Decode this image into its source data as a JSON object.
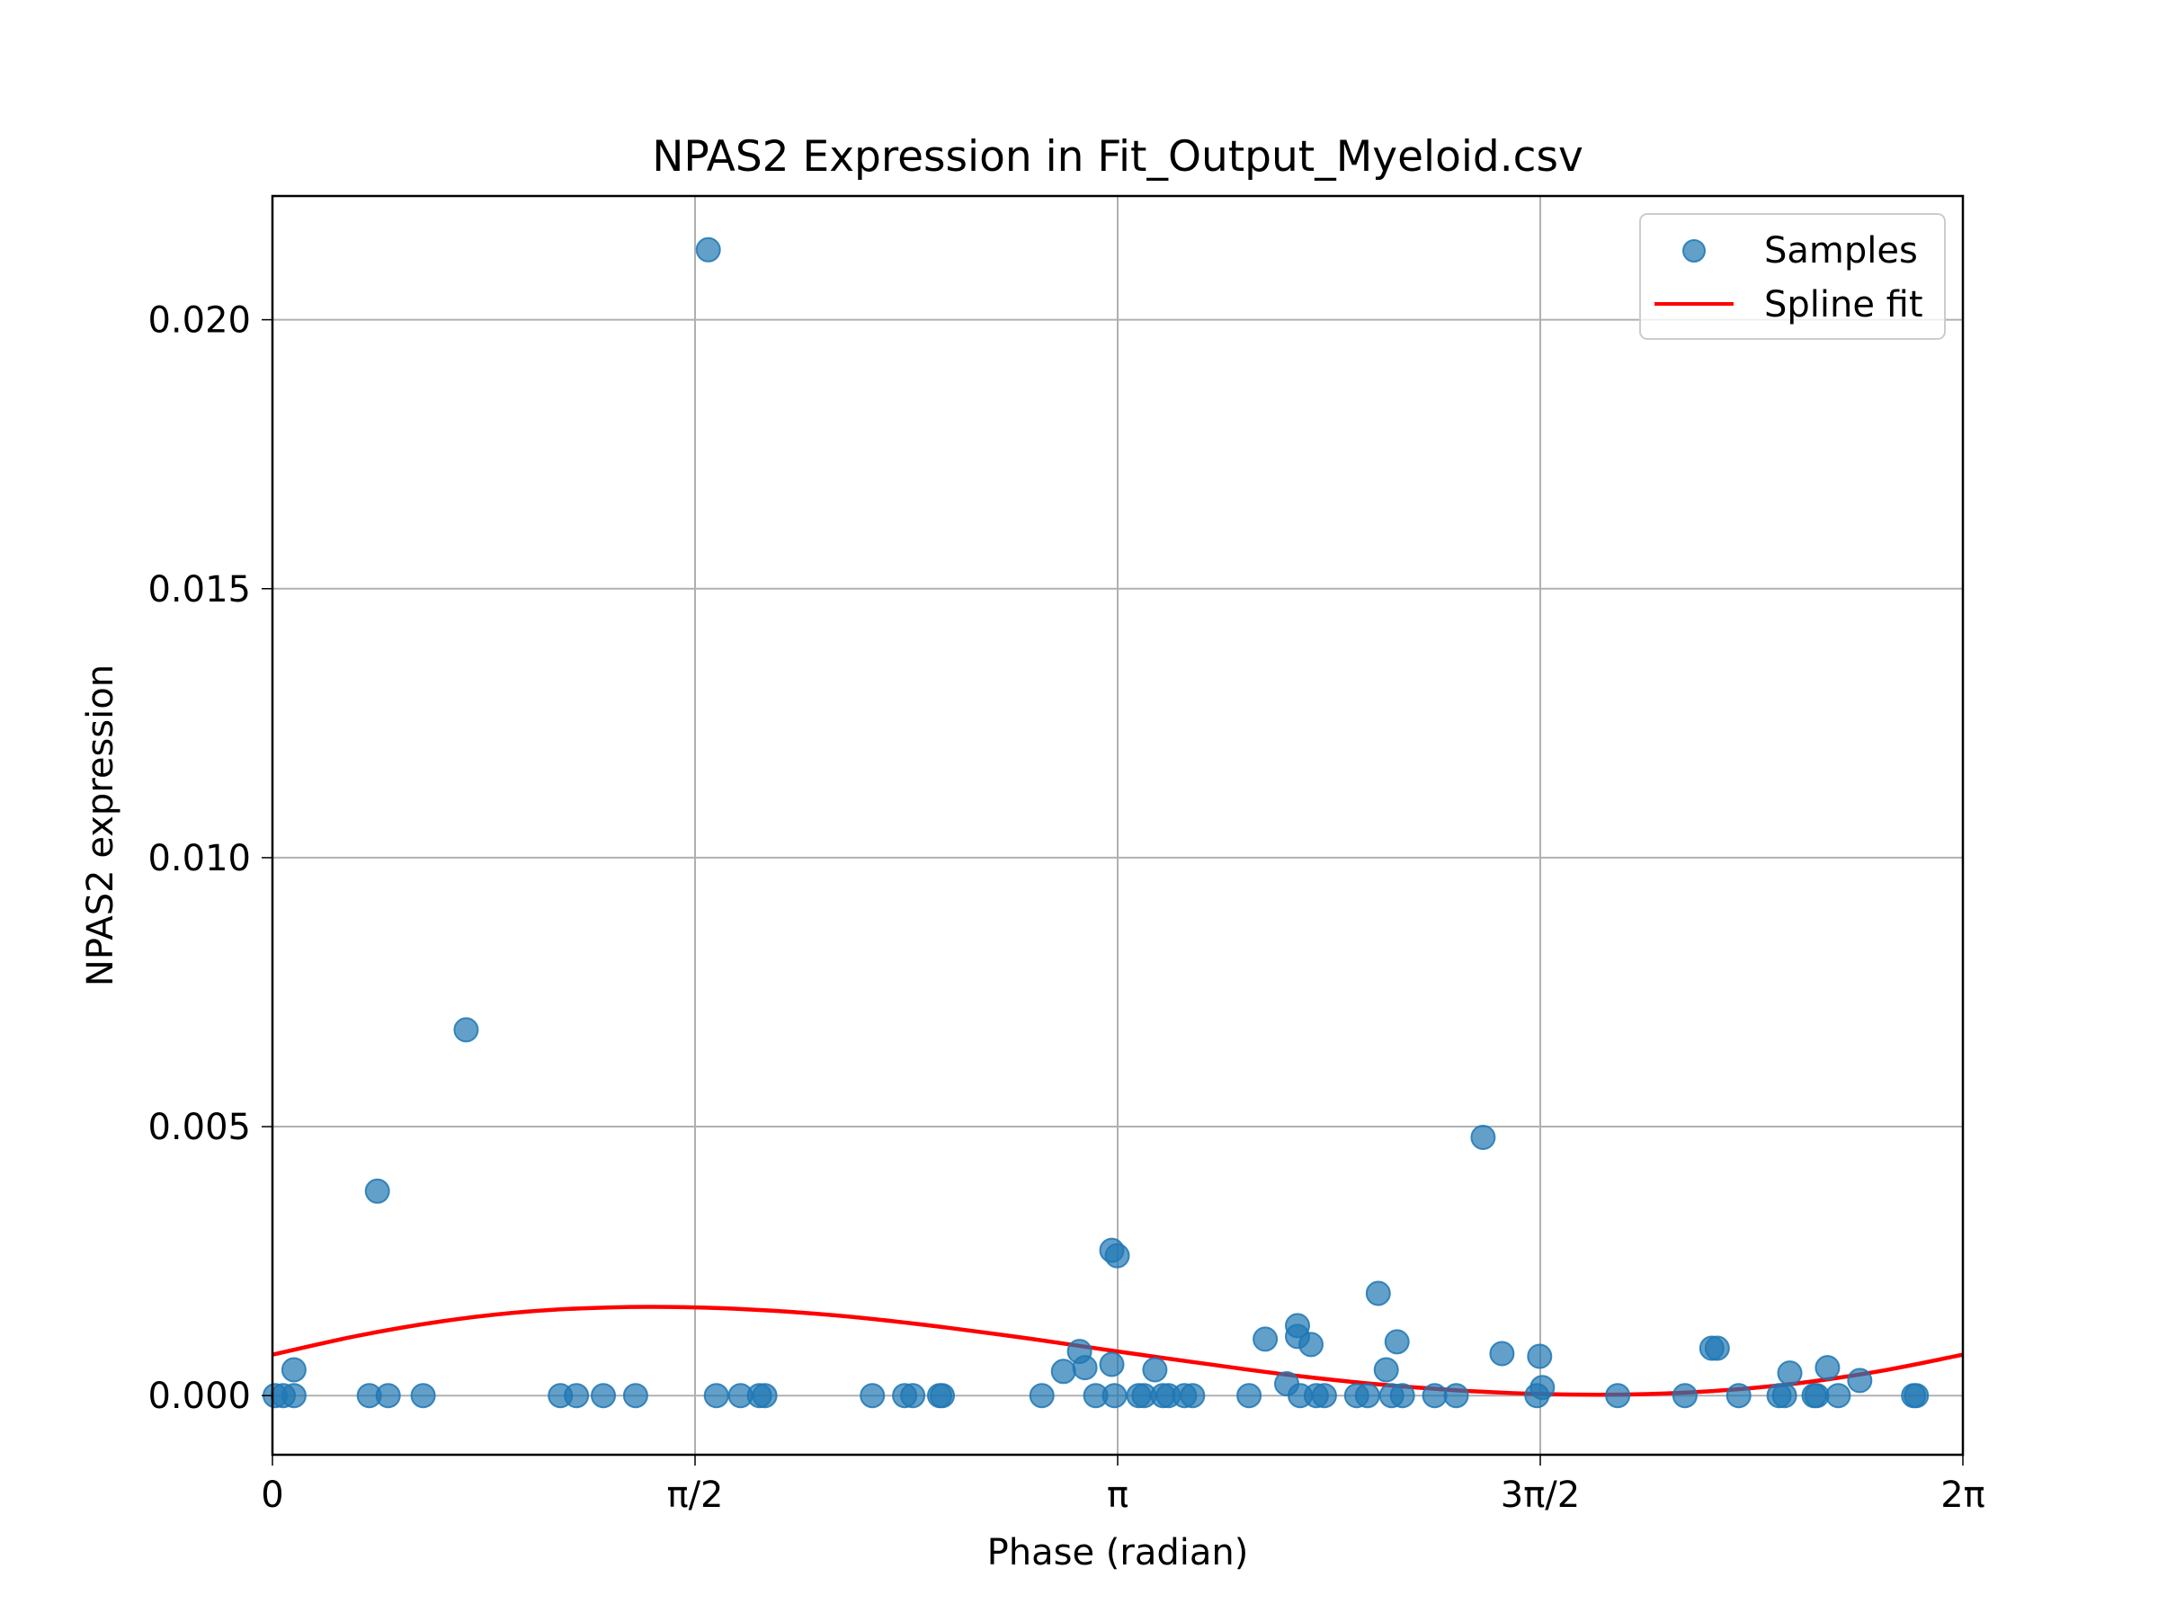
{
  "chart_data": {
    "type": "scatter",
    "title": "NPAS2 Expression in Fit_Output_Myeloid.csv",
    "xlabel": "Phase (radian)",
    "ylabel": "NPAS2 expression",
    "xlim": [
      0,
      6.2832
    ],
    "ylim": [
      -0.0011,
      0.0223
    ],
    "grid": true,
    "legend_position": "upper-right",
    "x_ticks": [
      {
        "value": 0,
        "label": "0"
      },
      {
        "value": 1.5708,
        "label": "π/2"
      },
      {
        "value": 3.1416,
        "label": "π"
      },
      {
        "value": 4.7124,
        "label": "3π/2"
      },
      {
        "value": 6.2832,
        "label": "2π"
      }
    ],
    "y_ticks": [
      {
        "value": 0.0,
        "label": "0.000"
      },
      {
        "value": 0.005,
        "label": "0.005"
      },
      {
        "value": 0.01,
        "label": "0.010"
      },
      {
        "value": 0.015,
        "label": "0.015"
      },
      {
        "value": 0.02,
        "label": "0.020"
      }
    ],
    "series": [
      {
        "name": "Samples",
        "kind": "scatter",
        "color": "#1f77b4",
        "points": [
          [
            0.01,
            0.0
          ],
          [
            0.04,
            0.0
          ],
          [
            0.08,
            0.0
          ],
          [
            0.08,
            0.00048
          ],
          [
            0.36,
            0.0
          ],
          [
            0.39,
            0.0038
          ],
          [
            0.43,
            0.0
          ],
          [
            0.56,
            0.0
          ],
          [
            0.72,
            0.0068
          ],
          [
            1.07,
            0.0
          ],
          [
            1.13,
            0.0
          ],
          [
            1.23,
            0.0
          ],
          [
            1.35,
            0.0
          ],
          [
            1.62,
            0.0213
          ],
          [
            1.65,
            0.0
          ],
          [
            1.74,
            0.0
          ],
          [
            1.81,
            0.0
          ],
          [
            1.83,
            0.0
          ],
          [
            2.23,
            0.0
          ],
          [
            2.35,
            0.0
          ],
          [
            2.38,
            0.0
          ],
          [
            2.48,
            0.0
          ],
          [
            2.49,
            0.0
          ],
          [
            2.86,
            0.0
          ],
          [
            2.94,
            0.00045
          ],
          [
            3.0,
            0.00082
          ],
          [
            3.02,
            0.00052
          ],
          [
            3.06,
            0.0
          ],
          [
            3.12,
            0.0027
          ],
          [
            3.12,
            0.00058
          ],
          [
            3.13,
            0.0
          ],
          [
            3.14,
            0.0026
          ],
          [
            3.22,
            0.0
          ],
          [
            3.24,
            0.0
          ],
          [
            3.28,
            0.00048
          ],
          [
            3.31,
            0.0
          ],
          [
            3.33,
            0.0
          ],
          [
            3.39,
            0.0
          ],
          [
            3.42,
            0.0
          ],
          [
            3.63,
            0.0
          ],
          [
            3.69,
            0.00105
          ],
          [
            3.77,
            0.00022
          ],
          [
            3.81,
            0.0013
          ],
          [
            3.81,
            0.0011
          ],
          [
            3.82,
            0.0
          ],
          [
            3.86,
            0.00095
          ],
          [
            3.88,
            0.0
          ],
          [
            3.91,
            0.0
          ],
          [
            4.03,
            0.0
          ],
          [
            4.07,
            0.0
          ],
          [
            4.11,
            0.0019
          ],
          [
            4.14,
            0.00048
          ],
          [
            4.16,
            0.0
          ],
          [
            4.18,
            0.001
          ],
          [
            4.2,
            0.0
          ],
          [
            4.32,
            0.0
          ],
          [
            4.4,
            0.0
          ],
          [
            4.5,
            0.0048
          ],
          [
            4.57,
            0.00078
          ],
          [
            4.7,
            0.0
          ],
          [
            4.71,
            0.00073
          ],
          [
            4.72,
            0.00015
          ],
          [
            5.0,
            0.0
          ],
          [
            5.25,
            0.0
          ],
          [
            5.35,
            0.00088
          ],
          [
            5.37,
            0.00088
          ],
          [
            5.45,
            0.0
          ],
          [
            5.6,
            0.0
          ],
          [
            5.62,
            0.0
          ],
          [
            5.64,
            0.00042
          ],
          [
            5.73,
            0.0
          ],
          [
            5.74,
            0.0
          ],
          [
            5.78,
            0.00052
          ],
          [
            5.82,
            0.0
          ],
          [
            5.9,
            0.00028
          ],
          [
            6.1,
            0.0
          ],
          [
            6.11,
            0.0
          ]
        ]
      },
      {
        "name": "Spline fit",
        "kind": "line",
        "color": "#ff0000",
        "points": [
          [
            0.0,
            0.00076
          ],
          [
            0.3142,
            0.00111
          ],
          [
            0.6283,
            0.00138
          ],
          [
            0.9425,
            0.00156
          ],
          [
            1.2566,
            0.00164
          ],
          [
            1.5708,
            0.00164
          ],
          [
            1.885,
            0.00157
          ],
          [
            2.1991,
            0.00144
          ],
          [
            2.5133,
            0.00126
          ],
          [
            2.8274,
            0.00105
          ],
          [
            3.1416,
            0.00082
          ],
          [
            3.4558,
            0.0006
          ],
          [
            3.7699,
            0.00039
          ],
          [
            4.0841,
            0.00022
          ],
          [
            4.3982,
            0.0001
          ],
          [
            4.7124,
            3e-05
          ],
          [
            5.0265,
            2e-05
          ],
          [
            5.3407,
            8e-05
          ],
          [
            5.6549,
            0.00022
          ],
          [
            5.969,
            0.00045
          ],
          [
            6.2832,
            0.00076
          ]
        ]
      }
    ]
  }
}
